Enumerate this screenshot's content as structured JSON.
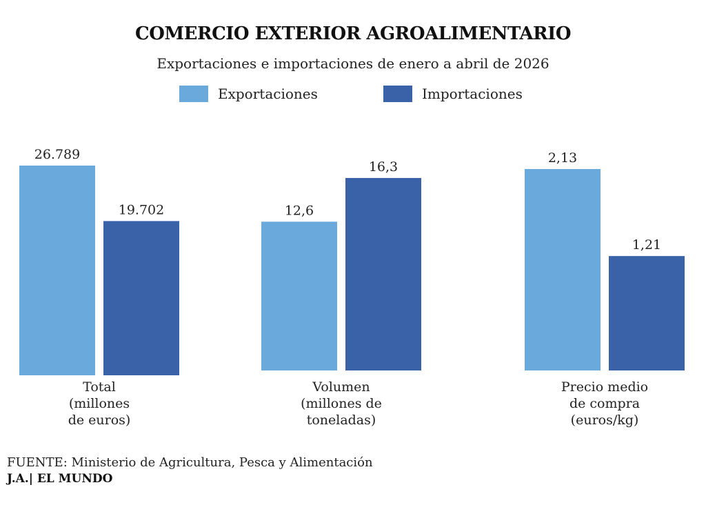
{
  "title": "COMERCIO EXTERIOR AGROALIMENTARIO",
  "subtitle": "Exportaciones e importaciones de enero a abril de 2026",
  "legend": {
    "exports": "Exportaciones",
    "imports": "Importaciones"
  },
  "colors": {
    "exports": "#6aa9dc",
    "imports": "#3a62a9"
  },
  "chart_data": {
    "type": "bar",
    "legend_position": "top-center",
    "grid": false,
    "groups": [
      {
        "label_lines": [
          "Total",
          "(millones",
          "de euros)"
        ],
        "exports": {
          "value": 26789,
          "label": "26.789"
        },
        "imports": {
          "value": 19702,
          "label": "19.702"
        }
      },
      {
        "label_lines": [
          "Volumen",
          "(millones de",
          "toneladas)"
        ],
        "exports": {
          "value": 12.6,
          "label": "12,6"
        },
        "imports": {
          "value": 16.3,
          "label": "16,3"
        }
      },
      {
        "label_lines": [
          "Precio medio",
          "de compra",
          "(euros/kg)"
        ],
        "exports": {
          "value": 2.13,
          "label": "2,13"
        },
        "imports": {
          "value": 1.21,
          "label": "1,21"
        }
      }
    ]
  },
  "source": {
    "key": "FUENTE:",
    "text": "Ministerio de Agricultura, Pesca y Alimentación"
  },
  "credit": "J.A.| EL MUNDO"
}
